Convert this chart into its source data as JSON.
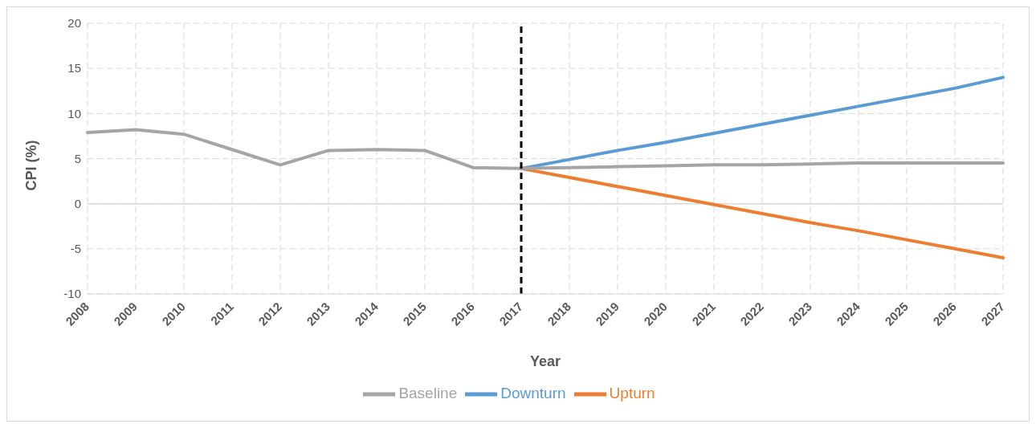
{
  "chart_data": {
    "type": "line",
    "xlabel": "Year",
    "ylabel": "CPI (%)",
    "categories": [
      "2008",
      "2009",
      "2010",
      "2011",
      "2012",
      "2013",
      "2014",
      "2015",
      "2016",
      "2017",
      "2018",
      "2019",
      "2020",
      "2021",
      "2022",
      "2023",
      "2024",
      "2025",
      "2026",
      "2027"
    ],
    "series": [
      {
        "name": "Downturn",
        "color": "#5b9bd5",
        "values": [
          null,
          null,
          null,
          null,
          null,
          null,
          null,
          null,
          null,
          3.9,
          4.9,
          5.9,
          6.8,
          7.8,
          8.8,
          9.8,
          10.8,
          11.8,
          12.8,
          14.0
        ]
      },
      {
        "name": "Upturn",
        "color": "#ed7d31",
        "values": [
          null,
          null,
          null,
          null,
          null,
          null,
          null,
          null,
          null,
          3.9,
          2.9,
          1.9,
          0.9,
          -0.1,
          -1.1,
          -2.1,
          -3.0,
          -4.0,
          -5.0,
          -6.0
        ]
      },
      {
        "name": "Baseline",
        "color": "#a5a5a5",
        "values": [
          7.9,
          8.2,
          7.7,
          6.0,
          4.3,
          5.9,
          6.0,
          5.9,
          4.0,
          3.9,
          4.0,
          4.1,
          4.2,
          4.3,
          4.3,
          4.4,
          4.5,
          4.5,
          4.5,
          4.5
        ]
      }
    ],
    "ylim": [
      -10,
      20
    ],
    "yticks": [
      -10,
      -5,
      0,
      5,
      10,
      15,
      20
    ],
    "ref_lines": [
      {
        "axis": "x",
        "value": "2017",
        "color": "#000000",
        "line_style": "dashed"
      }
    ],
    "grid": true,
    "legend": "bottom",
    "marker": "none",
    "line_style": "solid"
  }
}
